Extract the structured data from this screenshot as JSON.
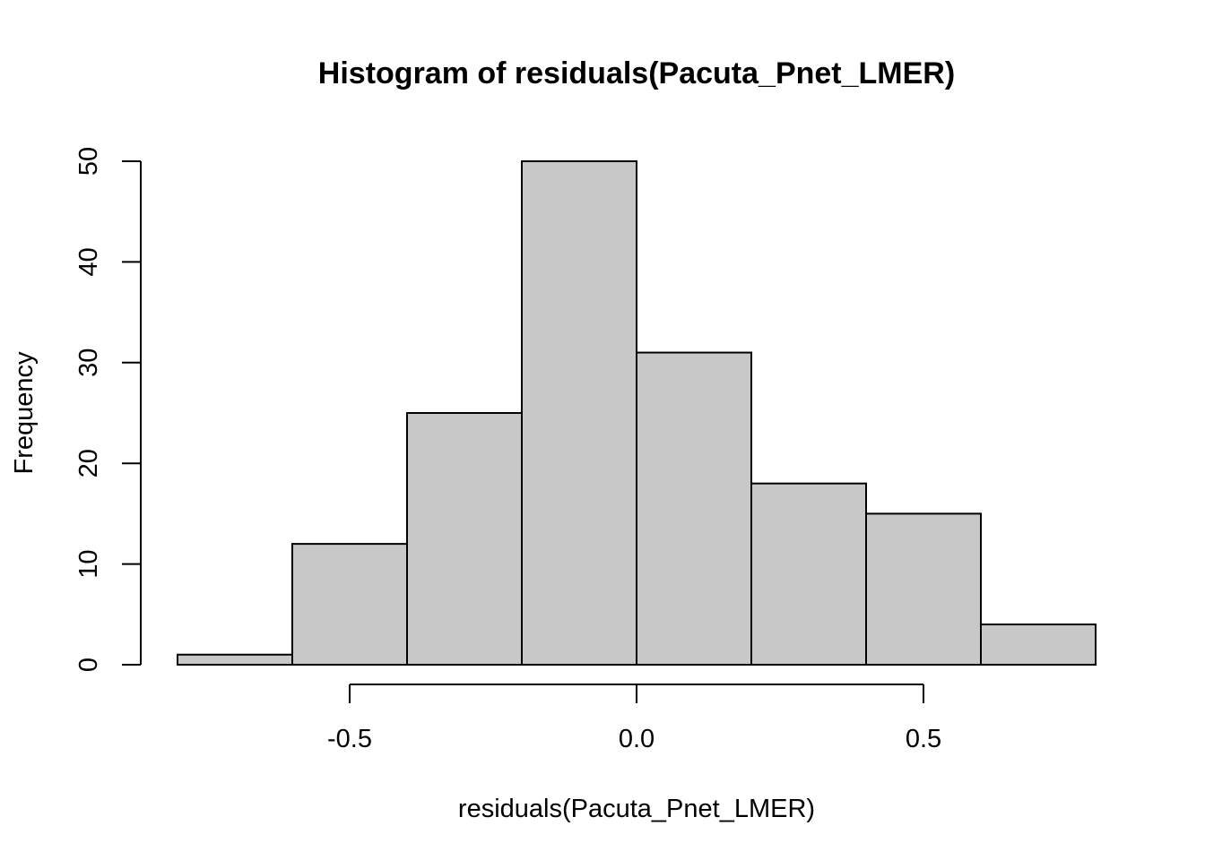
{
  "chart_data": {
    "type": "bar",
    "subtype": "histogram",
    "title": "Histogram of residuals(Pacuta_Pnet_LMER)",
    "xlabel": "residuals(Pacuta_Pnet_LMER)",
    "ylabel": "Frequency",
    "bin_edges": [
      -0.8,
      -0.6,
      -0.4,
      -0.2,
      0.0,
      0.2,
      0.4,
      0.6,
      0.8
    ],
    "values": [
      1,
      12,
      25,
      50,
      31,
      18,
      15,
      4
    ],
    "xlim": [
      -0.8,
      0.8
    ],
    "ylim": [
      0,
      50
    ],
    "x_ticks": [
      -0.5,
      0.0,
      0.5
    ],
    "x_tick_labels": [
      "-0.5",
      "0.0",
      "0.5"
    ],
    "y_ticks": [
      0,
      10,
      20,
      30,
      40,
      50
    ],
    "y_tick_labels": [
      "0",
      "10",
      "20",
      "30",
      "40",
      "50"
    ],
    "bar_color": "#c8c8c8",
    "edge_color": "#000000",
    "grid": false,
    "legend": "none"
  }
}
